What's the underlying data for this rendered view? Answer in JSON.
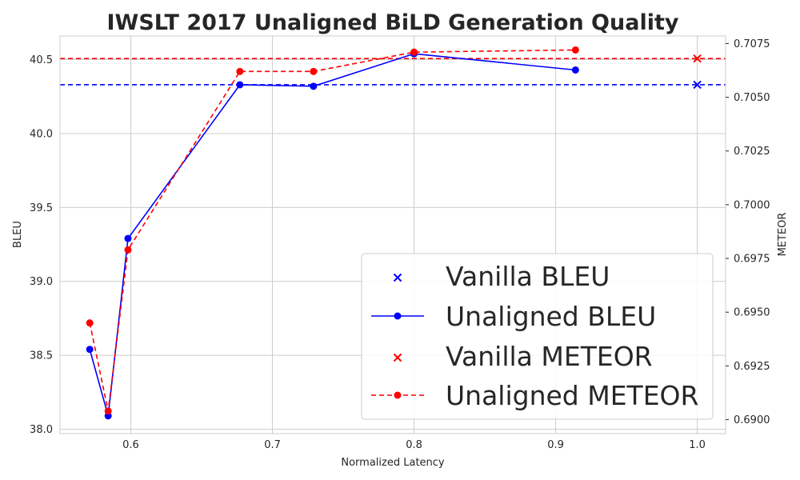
{
  "chart_data": {
    "type": "line",
    "title": "IWSLT 2017 Unaligned BiLD Generation Quality",
    "xlabel": "Normalized Latency",
    "ylabel_left": "BLEU",
    "ylabel_right": "METEOR",
    "xlim": [
      0.55,
      1.02
    ],
    "ylim_left": [
      37.97,
      40.66
    ],
    "ylim_right": [
      0.68935,
      0.70785
    ],
    "x_ticks": [
      0.6,
      0.7,
      0.8,
      0.9,
      1.0
    ],
    "x_tick_labels": [
      "0.6",
      "0.7",
      "0.8",
      "0.9",
      "1.0"
    ],
    "y_left_ticks": [
      38.0,
      38.5,
      39.0,
      39.5,
      40.0,
      40.5
    ],
    "y_left_tick_labels": [
      "38.0",
      "38.5",
      "39.0",
      "39.5",
      "40.0",
      "40.5"
    ],
    "y_right_ticks": [
      0.69,
      0.6925,
      0.695,
      0.6975,
      0.7,
      0.7025,
      0.705,
      0.7075
    ],
    "y_right_tick_labels": [
      "0.6900",
      "0.6925",
      "0.6950",
      "0.6975",
      "0.7000",
      "0.7025",
      "0.7050",
      "0.7075"
    ],
    "grid": true,
    "legend_position": "lower-right",
    "series": [
      {
        "name": "Vanilla BLEU",
        "axis": "left",
        "color": "#0000ff",
        "marker": "x",
        "hline": 40.33,
        "x": [
          1.0
        ],
        "y": [
          40.33
        ]
      },
      {
        "name": "Unaligned BLEU",
        "axis": "left",
        "color": "#0000ff",
        "marker": "circle",
        "linestyle": "solid",
        "x": [
          0.571,
          0.584,
          0.598,
          0.677,
          0.729,
          0.8,
          0.914
        ],
        "y": [
          38.54,
          38.09,
          39.29,
          40.33,
          40.32,
          40.54,
          40.43
        ]
      },
      {
        "name": "Vanilla METEOR",
        "axis": "right",
        "color": "#ff0000",
        "marker": "x",
        "hline": 0.7068,
        "x": [
          1.0
        ],
        "y": [
          0.7068
        ]
      },
      {
        "name": "Unaligned METEOR",
        "axis": "right",
        "color": "#ff0000",
        "marker": "circle",
        "linestyle": "dashed",
        "x": [
          0.571,
          0.584,
          0.598,
          0.677,
          0.729,
          0.8,
          0.914
        ],
        "y": [
          0.6945,
          0.6904,
          0.6979,
          0.7062,
          0.7062,
          0.7071,
          0.7072
        ]
      }
    ]
  }
}
